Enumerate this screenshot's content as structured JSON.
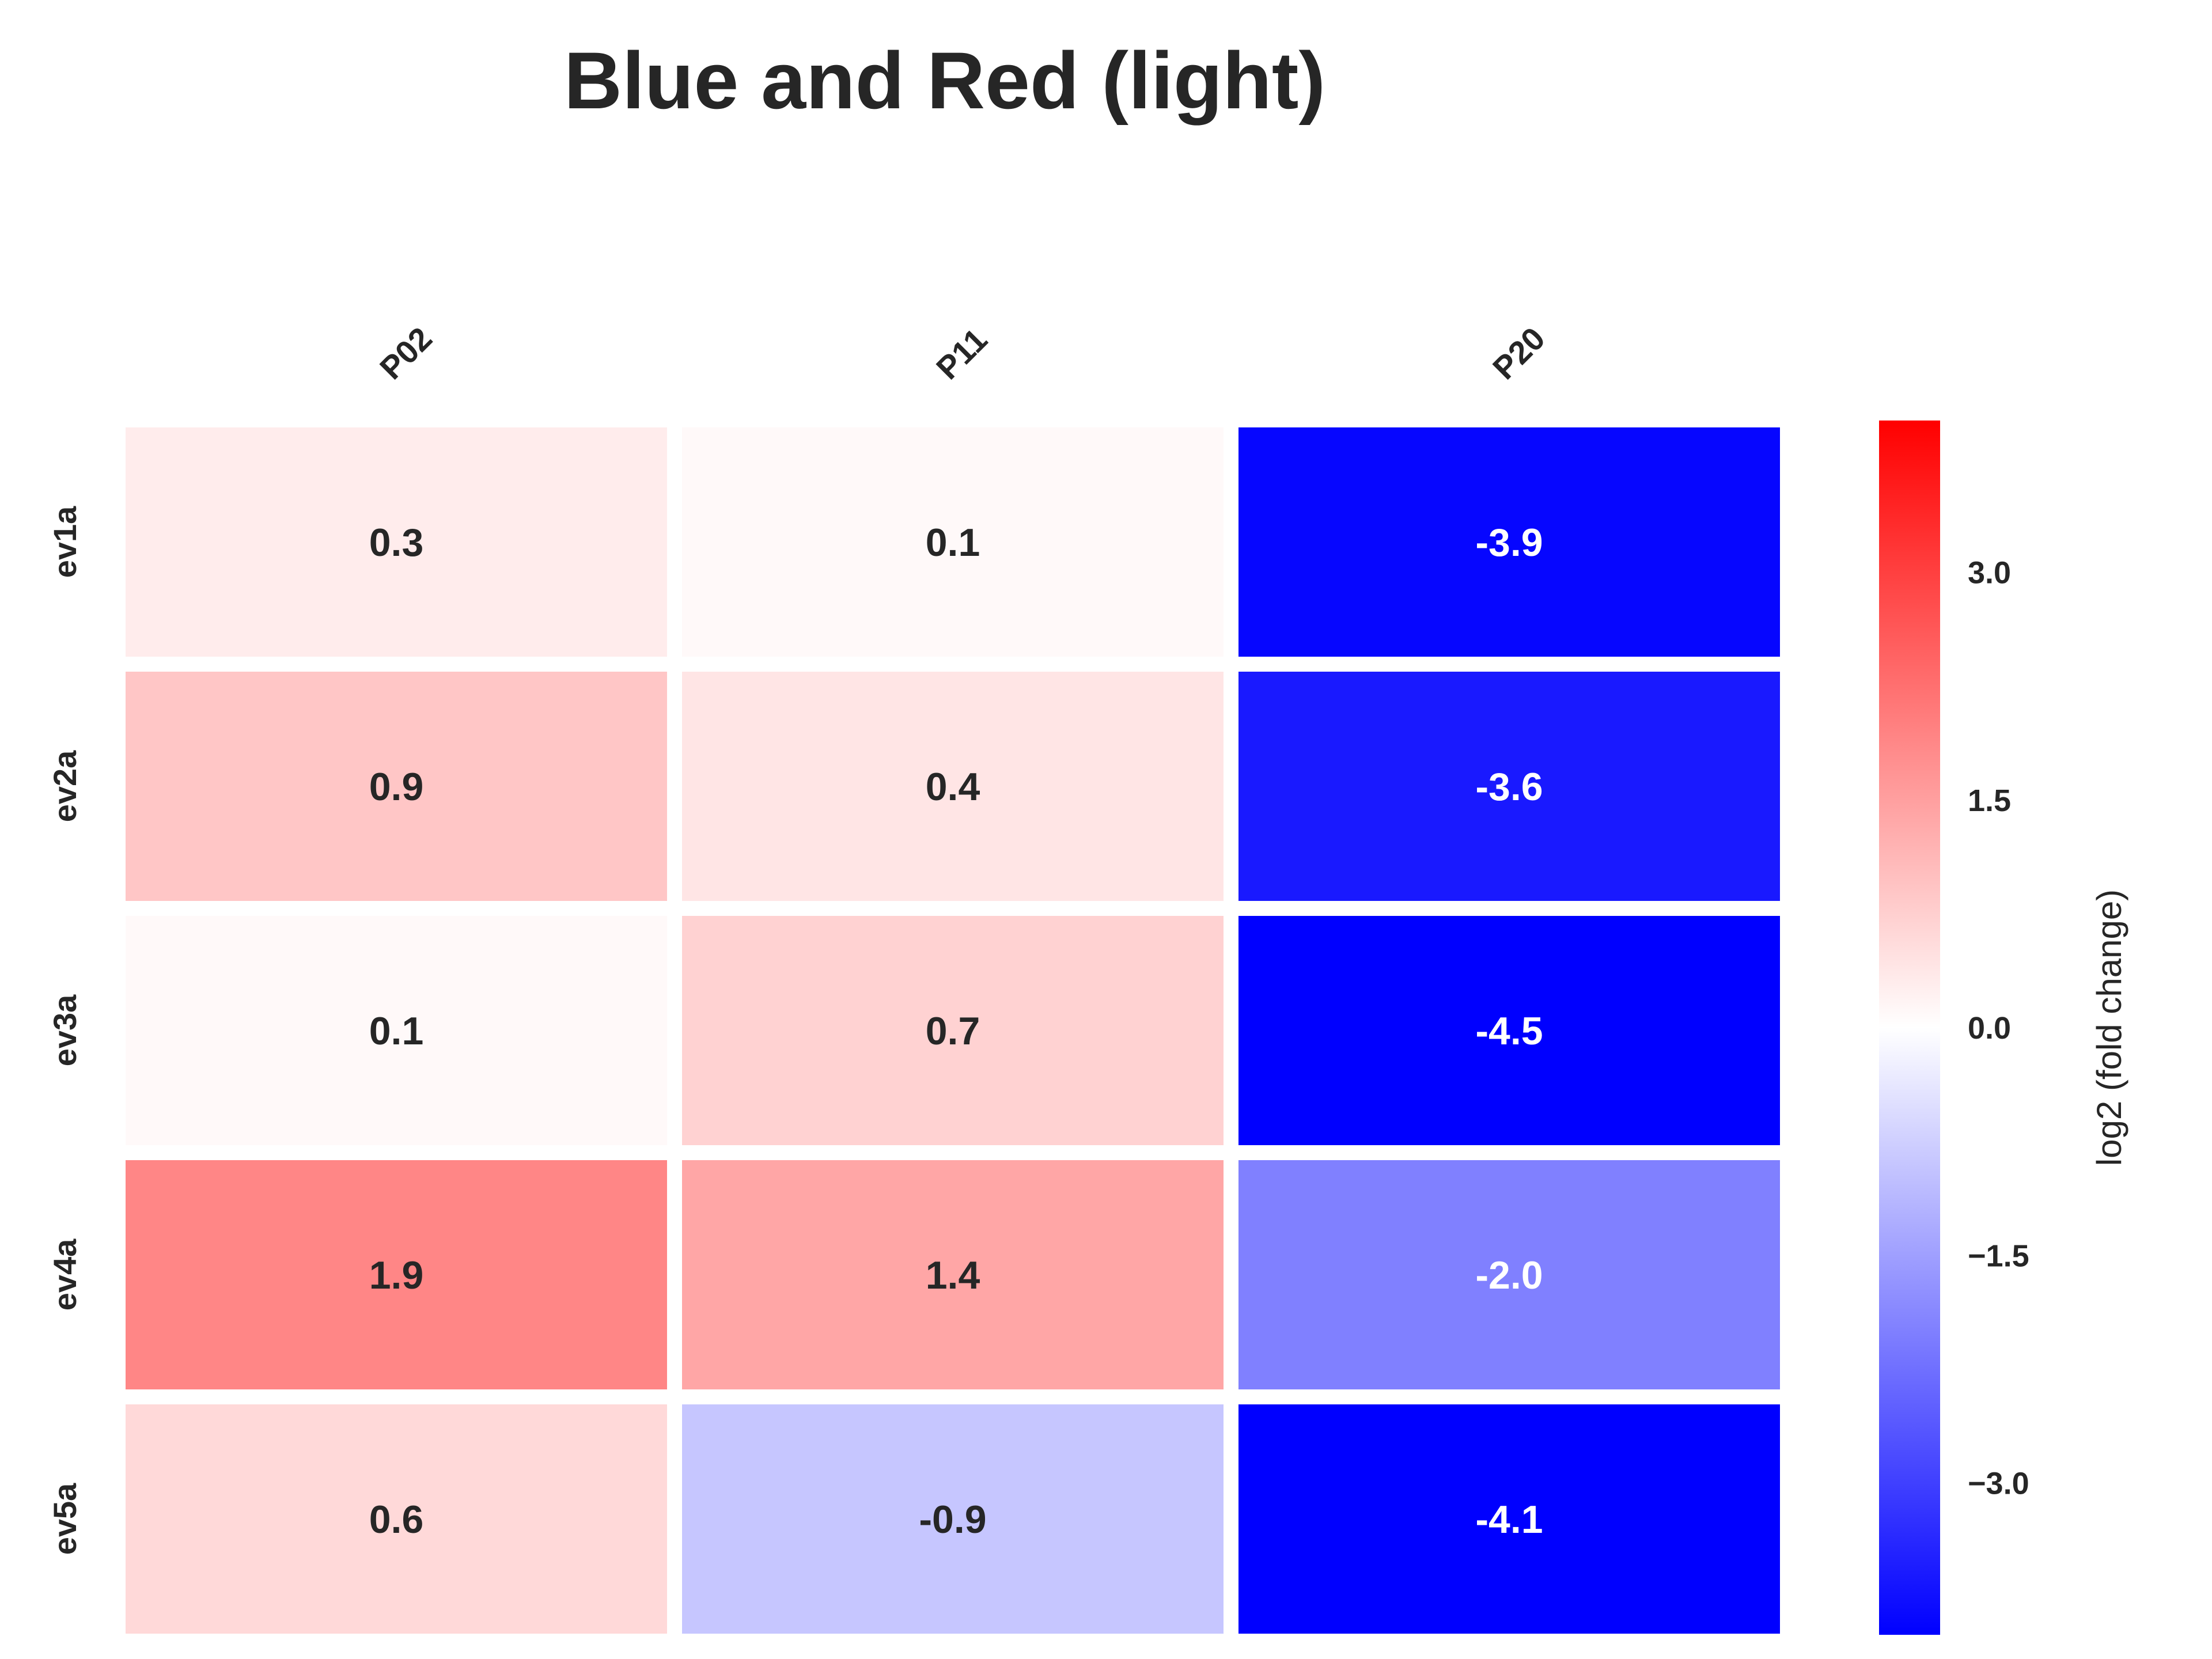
{
  "chart_data": {
    "type": "heatmap",
    "title": "Blue and Red (light)",
    "columns": [
      "P02",
      "P11",
      "P20"
    ],
    "rows": [
      "ev1a",
      "ev2a",
      "ev3a",
      "ev4a",
      "ev5a"
    ],
    "values": [
      [
        0.3,
        0.1,
        -3.9
      ],
      [
        0.9,
        0.4,
        -3.6
      ],
      [
        0.1,
        0.7,
        -4.5
      ],
      [
        1.9,
        1.4,
        -2.0
      ],
      [
        0.6,
        -0.9,
        -4.1
      ]
    ],
    "cell_labels": [
      [
        "0.3",
        "0.1",
        "-3.9"
      ],
      [
        "0.9",
        "0.4",
        "-3.6"
      ],
      [
        "0.1",
        "0.7",
        "-4.5"
      ],
      [
        "1.9",
        "1.4",
        "-2.0"
      ],
      [
        "0.6",
        "-0.9",
        "-4.1"
      ]
    ],
    "colorbar": {
      "label": "log2 (fold change)",
      "vmin": -4,
      "vmax": 4,
      "ticks": [
        3.0,
        1.5,
        0.0,
        -1.5,
        -3.0
      ],
      "tick_labels": [
        "3.0",
        "1.5",
        "0.0",
        "−1.5",
        "−3.0"
      ]
    },
    "colormap": {
      "low": "#0000ff",
      "mid": "#ffffff",
      "high": "#ff0000"
    },
    "text_colors": {
      "dark": "#262626",
      "light": "#ffffff"
    },
    "grid": false,
    "column_labels_position": "top"
  }
}
